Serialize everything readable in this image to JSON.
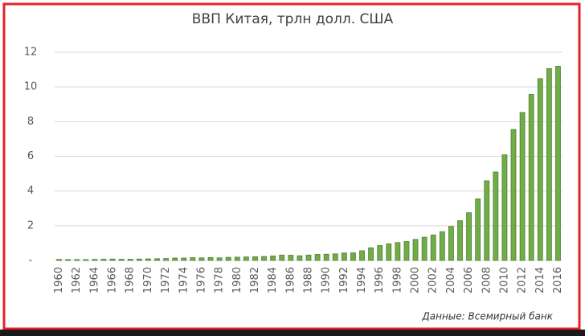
{
  "chart_data": {
    "type": "bar",
    "title": "ВВП Китая, трлн долл. США",
    "categories": [
      "1960",
      null,
      "1962",
      null,
      "1964",
      null,
      "1966",
      null,
      "1968",
      null,
      "1970",
      null,
      "1972",
      null,
      "1974",
      null,
      "1976",
      null,
      "1978",
      null,
      "1980",
      null,
      "1982",
      null,
      "1984",
      null,
      "1986",
      null,
      "1988",
      null,
      "1990",
      null,
      "1992",
      null,
      "1994",
      null,
      "1996",
      null,
      "1998",
      null,
      "2000",
      null,
      "2002",
      null,
      "2004",
      null,
      "2006",
      null,
      "2008",
      null,
      "2010",
      null,
      "2012",
      null,
      "2014",
      null,
      "2016"
    ],
    "values": [
      0.06,
      0.05,
      0.05,
      0.05,
      0.06,
      0.07,
      0.08,
      0.07,
      0.07,
      0.08,
      0.09,
      0.1,
      0.11,
      0.14,
      0.14,
      0.16,
      0.15,
      0.17,
      0.15,
      0.18,
      0.19,
      0.2,
      0.21,
      0.23,
      0.26,
      0.31,
      0.3,
      0.27,
      0.31,
      0.35,
      0.36,
      0.38,
      0.43,
      0.44,
      0.56,
      0.73,
      0.86,
      0.96,
      1.03,
      1.09,
      1.21,
      1.34,
      1.47,
      1.66,
      1.96,
      2.29,
      2.75,
      3.55,
      4.59,
      5.1,
      6.09,
      7.55,
      8.53,
      9.57,
      10.48,
      11.06,
      11.19
    ],
    "color": "#70ad47",
    "ylim": [
      0,
      12
    ],
    "yticks": [
      {
        "value": 0,
        "label": "-"
      },
      2,
      4,
      6,
      8,
      10,
      12
    ],
    "grid": true,
    "source": "Данные: Всемирный банк"
  }
}
